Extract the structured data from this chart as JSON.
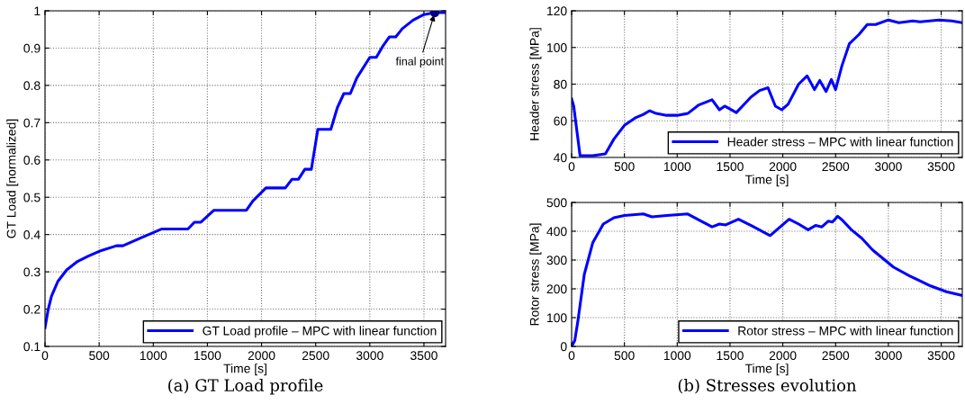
{
  "chart_data": [
    {
      "type": "line",
      "xlabel": "Time [s]",
      "ylabel": "GT Load [normalized]",
      "xlim": [
        0,
        3700
      ],
      "xticks": [
        0,
        500,
        1000,
        1500,
        2000,
        2500,
        3000,
        3500
      ],
      "ylim": [
        0.1,
        1
      ],
      "yticks": [
        0.1,
        0.2,
        0.3,
        0.4,
        0.5,
        0.6,
        0.7,
        0.8,
        0.9,
        1
      ],
      "grid": true,
      "legend": "lower right",
      "line_style": "solid",
      "series": [
        {
          "name": "GT Load profile – MPC with linear function",
          "color": "#0000ff",
          "x": [
            0,
            30,
            60,
            120,
            200,
            300,
            400,
            500,
            660,
            720,
            900,
            1080,
            1320,
            1380,
            1440,
            1560,
            1860,
            1920,
            2040,
            2220,
            2280,
            2340,
            2400,
            2460,
            2520,
            2640,
            2700,
            2760,
            2820,
            2880,
            3000,
            3060,
            3120,
            3180,
            3240,
            3300,
            3400,
            3500,
            3600,
            3700
          ],
          "values": [
            0.15,
            0.2,
            0.235,
            0.275,
            0.305,
            0.328,
            0.342,
            0.355,
            0.37,
            0.37,
            0.393,
            0.415,
            0.415,
            0.433,
            0.433,
            0.465,
            0.465,
            0.49,
            0.525,
            0.525,
            0.548,
            0.548,
            0.575,
            0.575,
            0.682,
            0.682,
            0.74,
            0.778,
            0.778,
            0.82,
            0.875,
            0.875,
            0.905,
            0.93,
            0.93,
            0.952,
            0.975,
            0.99,
            0.995,
            0.995
          ]
        },
        {
          "type": "scatter",
          "color": "#000080",
          "x": [
            3600
          ],
          "values": [
            0.995
          ]
        }
      ],
      "annotations": [
        {
          "text": "final point",
          "x": 3600,
          "y": 0.995
        },
        "(a) GT Load profile"
      ]
    },
    {
      "type": "line",
      "xlabel": "Time [s]",
      "ylabel": "Header stress [MPa]",
      "xlim": [
        0,
        3700
      ],
      "xticks": [
        0,
        500,
        1000,
        1500,
        2000,
        2500,
        3000,
        3500
      ],
      "ylim": [
        40,
        120
      ],
      "yticks": [
        40,
        60,
        80,
        100,
        120
      ],
      "grid": true,
      "legend": "lower right",
      "line_style": "solid",
      "series": [
        {
          "name": "Header stress – MPC with linear function",
          "color": "#0000ff",
          "x": [
            0,
            20,
            80,
            200,
            320,
            400,
            500,
            600,
            680,
            740,
            800,
            900,
            1000,
            1100,
            1200,
            1330,
            1400,
            1450,
            1560,
            1700,
            1780,
            1860,
            1930,
            1990,
            2050,
            2150,
            2230,
            2300,
            2350,
            2410,
            2460,
            2500,
            2560,
            2630,
            2720,
            2800,
            2880,
            3000,
            3100,
            3230,
            3300,
            3480,
            3600,
            3700
          ],
          "values": [
            72,
            68,
            41,
            41,
            42,
            50,
            57.5,
            61.5,
            63.5,
            65.5,
            64,
            63,
            63,
            64,
            68.5,
            71.5,
            66,
            68,
            64.5,
            73,
            76.5,
            78,
            68,
            66,
            69,
            80,
            84.5,
            77,
            82,
            76,
            82.5,
            77,
            90,
            102,
            107,
            112.5,
            112.5,
            115,
            113.5,
            114.5,
            114,
            115,
            114.5,
            113.5
          ]
        }
      ]
    },
    {
      "type": "line",
      "xlabel": "Time [s]",
      "ylabel": "Rotor stress [MPa]",
      "xlim": [
        0,
        3700
      ],
      "xticks": [
        0,
        500,
        1000,
        1500,
        2000,
        2500,
        3000,
        3500
      ],
      "ylim": [
        0,
        500
      ],
      "yticks": [
        0,
        100,
        200,
        300,
        400,
        500
      ],
      "grid": true,
      "legend": "lower right",
      "line_style": "solid",
      "series": [
        {
          "name": "Rotor stress – MPC with linear function",
          "color": "#0000ff",
          "x": [
            0,
            30,
            60,
            120,
            200,
            300,
            400,
            500,
            680,
            760,
            900,
            1100,
            1200,
            1330,
            1400,
            1460,
            1580,
            1700,
            1880,
            2060,
            2150,
            2240,
            2310,
            2370,
            2430,
            2470,
            2520,
            2560,
            2650,
            2750,
            2850,
            3000,
            3050,
            3200,
            3400,
            3550,
            3700
          ],
          "values": [
            0,
            20,
            90,
            250,
            360,
            425,
            447,
            455,
            460,
            450,
            455,
            460,
            440,
            415,
            425,
            422,
            442,
            420,
            385,
            442,
            425,
            405,
            420,
            415,
            435,
            432,
            452,
            440,
            405,
            375,
            335,
            290,
            275,
            245,
            210,
            190,
            177
          ]
        }
      ],
      "annotations": [
        "(b) Stresses evolution"
      ]
    }
  ]
}
